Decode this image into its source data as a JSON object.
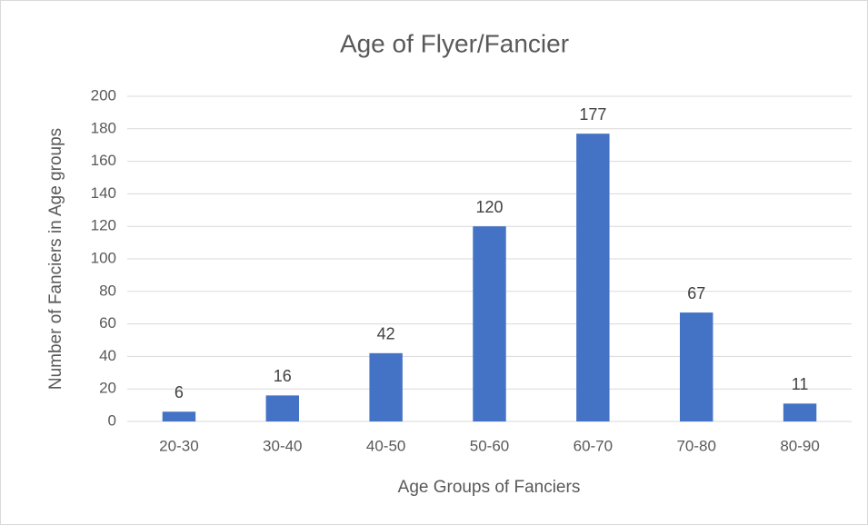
{
  "chart_data": {
    "type": "bar",
    "title": "Age of Flyer/Fancier",
    "x_label": "Age Groups of Fanciers",
    "y_label": "Number of Fanciers in Age groups",
    "categories": [
      "20-30",
      "30-40",
      "40-50",
      "50-60",
      "60-70",
      "70-80",
      "80-90"
    ],
    "values": [
      6,
      16,
      42,
      120,
      177,
      67,
      11
    ],
    "color": "#4472c4",
    "ylim": [
      0,
      200
    ],
    "yticks": [
      0,
      20,
      40,
      60,
      80,
      100,
      120,
      140,
      160,
      180,
      200
    ],
    "grid": true
  }
}
